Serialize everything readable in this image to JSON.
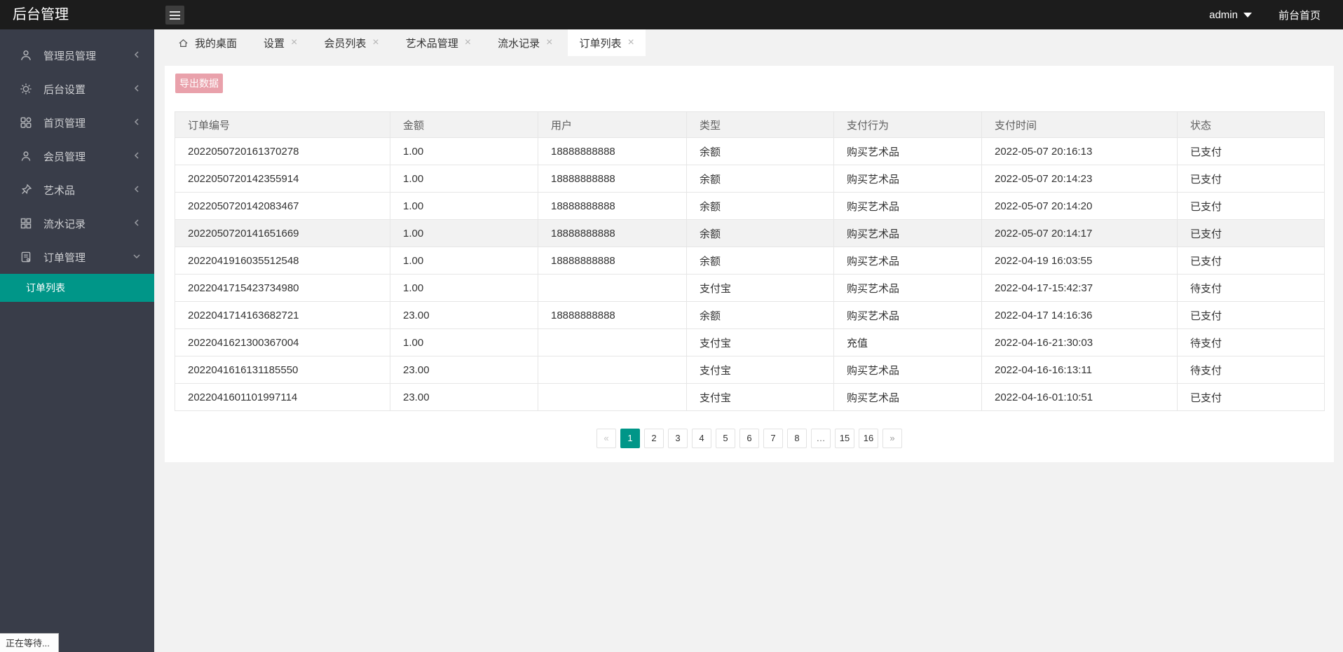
{
  "header": {
    "title": "后台管理",
    "hamburger_icon": "menu-icon",
    "user": "admin",
    "user_caret_icon": "caret-down-icon",
    "front_link": "前台首页"
  },
  "sidebar": {
    "items": [
      {
        "label": "管理员管理",
        "icon": "admin-user-icon",
        "chevron": "left",
        "expanded": false
      },
      {
        "label": "后台设置",
        "icon": "gear-icon",
        "chevron": "left",
        "expanded": false
      },
      {
        "label": "首页管理",
        "icon": "home-grid-icon",
        "chevron": "left",
        "expanded": false
      },
      {
        "label": "会员管理",
        "icon": "member-icon",
        "chevron": "left",
        "expanded": false
      },
      {
        "label": "艺术品",
        "icon": "pin-icon",
        "chevron": "left",
        "expanded": false
      },
      {
        "label": "流水记录",
        "icon": "records-grid-icon",
        "chevron": "left",
        "expanded": false
      },
      {
        "label": "订单管理",
        "icon": "order-file-icon",
        "chevron": "down",
        "expanded": true
      }
    ],
    "submenu": {
      "label": "订单列表",
      "active": true
    }
  },
  "tabs": [
    {
      "label": "我的桌面",
      "icon": "home-icon",
      "closable": false,
      "active": false
    },
    {
      "label": "设置",
      "closable": true,
      "active": false
    },
    {
      "label": "会员列表",
      "closable": true,
      "active": false
    },
    {
      "label": "艺术品管理",
      "closable": true,
      "active": false
    },
    {
      "label": "流水记录",
      "closable": true,
      "active": false
    },
    {
      "label": "订单列表",
      "closable": true,
      "active": true
    }
  ],
  "toolbar": {
    "export_label": "导出数据"
  },
  "table": {
    "columns": [
      "订单编号",
      "金额",
      "用户",
      "类型",
      "支付行为",
      "支付时间",
      "状态"
    ],
    "rows": [
      {
        "order_no": "2022050720161370278",
        "amount": "1.00",
        "user": "18888888888",
        "type": "余额",
        "type_color": "teal",
        "behavior": "购买艺术品",
        "behavior_color": "teal",
        "time": "2022-05-07 20:16:13",
        "status": "已支付",
        "status_color": "orange",
        "highlight": false
      },
      {
        "order_no": "2022050720142355914",
        "amount": "1.00",
        "user": "18888888888",
        "type": "余额",
        "type_color": "teal",
        "behavior": "购买艺术品",
        "behavior_color": "teal",
        "time": "2022-05-07 20:14:23",
        "status": "已支付",
        "status_color": "orange",
        "highlight": false
      },
      {
        "order_no": "2022050720142083467",
        "amount": "1.00",
        "user": "18888888888",
        "type": "余额",
        "type_color": "teal",
        "behavior": "购买艺术品",
        "behavior_color": "teal",
        "time": "2022-05-07 20:14:20",
        "status": "已支付",
        "status_color": "orange",
        "highlight": false
      },
      {
        "order_no": "2022050720141651669",
        "amount": "1.00",
        "user": "18888888888",
        "type": "余额",
        "type_color": "teal",
        "behavior": "购买艺术品",
        "behavior_color": "teal",
        "time": "2022-05-07 20:14:17",
        "status": "已支付",
        "status_color": "orange",
        "highlight": true
      },
      {
        "order_no": "2022041916035512548",
        "amount": "1.00",
        "user": "18888888888",
        "type": "余额",
        "type_color": "teal",
        "behavior": "购买艺术品",
        "behavior_color": "teal",
        "time": "2022-04-19 16:03:55",
        "status": "已支付",
        "status_color": "orange",
        "highlight": false
      },
      {
        "order_no": "2022041715423734980",
        "amount": "1.00",
        "user": "",
        "type": "支付宝",
        "type_color": "red",
        "behavior": "购买艺术品",
        "behavior_color": "teal",
        "time": "2022-04-17-15:42:37",
        "status": "待支付",
        "status_color": "warn",
        "highlight": false
      },
      {
        "order_no": "2022041714163682721",
        "amount": "23.00",
        "user": "18888888888",
        "type": "余额",
        "type_color": "teal",
        "behavior": "购买艺术品",
        "behavior_color": "teal",
        "time": "2022-04-17 14:16:36",
        "status": "已支付",
        "status_color": "orange",
        "highlight": false
      },
      {
        "order_no": "2022041621300367004",
        "amount": "1.00",
        "user": "",
        "type": "支付宝",
        "type_color": "red",
        "behavior": "充值",
        "behavior_color": "blue",
        "time": "2022-04-16-21:30:03",
        "status": "待支付",
        "status_color": "warn",
        "highlight": false
      },
      {
        "order_no": "2022041616131185550",
        "amount": "23.00",
        "user": "",
        "type": "支付宝",
        "type_color": "red",
        "behavior": "购买艺术品",
        "behavior_color": "teal",
        "time": "2022-04-16-16:13:11",
        "status": "待支付",
        "status_color": "warn",
        "highlight": false
      },
      {
        "order_no": "2022041601101997114",
        "amount": "23.00",
        "user": "",
        "type": "支付宝",
        "type_color": "red",
        "behavior": "购买艺术品",
        "behavior_color": "teal",
        "time": "2022-04-16-01:10:51",
        "status": "已支付",
        "status_color": "orange",
        "highlight": false
      }
    ]
  },
  "pagination": {
    "pages": [
      "«",
      "1",
      "2",
      "3",
      "4",
      "5",
      "6",
      "7",
      "8",
      "…",
      "15",
      "16",
      "»"
    ],
    "active": "1"
  },
  "statusbar": {
    "text": "正在等待..."
  },
  "colors": {
    "header_bg": "#1C1C1C",
    "sidebar_bg": "#393D49",
    "accent_teal": "#009688",
    "link_teal": "#17B3A6",
    "alipay_red": "#FF0000",
    "recharge_blue": "#3A10E6",
    "paid_orange": "#FF8D4D",
    "pending_red": "#FF4130",
    "export_pink": "#E9A1AB",
    "page_bg": "#F2F2F2"
  }
}
